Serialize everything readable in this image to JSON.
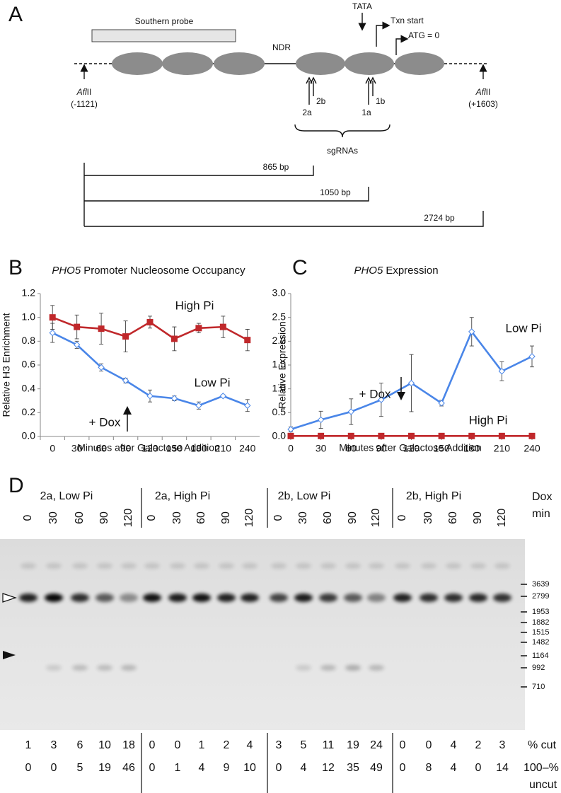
{
  "panel_labels": [
    "A",
    "B",
    "C",
    "D"
  ],
  "panel_a": {
    "probe": "Southern probe",
    "ndr": "NDR",
    "tata": "TATA",
    "txn_start": "Txn start",
    "atg": "ATG = 0",
    "sites": [
      {
        "name_italic": "Afl",
        "name_rest": "II",
        "position": "(-1121)"
      },
      {
        "name_italic": "Afl",
        "name_rest": "II",
        "position": "(+1603)"
      }
    ],
    "sgrna_labels": [
      "2b",
      "2a",
      "1b",
      "1a"
    ],
    "sgrnas": "sgRNAs",
    "fragments": [
      "865 bp",
      "1050 bp",
      "2724 bp"
    ]
  },
  "chart_data": [
    {
      "type": "line",
      "title_gene": "PHO5",
      "title": "Promoter Nucleosome Occupancy",
      "x_label": "Minutes after Galactose Addition",
      "y_label": "Relative H3 Enrichment",
      "categories": [
        "0",
        "30",
        "60",
        "90",
        "120",
        "150",
        "180",
        "210",
        "240"
      ],
      "series": [
        {
          "name": "High Pi",
          "color": "#c0282b",
          "marker": "square",
          "values": [
            1.0,
            0.92,
            0.905,
            0.84,
            0.96,
            0.82,
            0.91,
            0.92,
            0.81
          ],
          "errors": [
            0.1,
            0.1,
            0.13,
            0.13,
            0.05,
            0.1,
            0.04,
            0.09,
            0.09
          ]
        },
        {
          "name": "Low Pi",
          "color": "#4a86e8",
          "marker": "diamond",
          "values": [
            0.87,
            0.77,
            0.58,
            0.47,
            0.34,
            0.32,
            0.26,
            0.34,
            0.26
          ],
          "errors": [
            0.08,
            0.03,
            0.03,
            0.02,
            0.05,
            0.02,
            0.03,
            0.01,
            0.05
          ]
        }
      ],
      "ylim": [
        0,
        1.2
      ],
      "yticks": [
        {
          "value": 0,
          "label": "0.0"
        },
        0.2,
        0.4,
        0.6,
        0.8,
        {
          "value": 1,
          "label": "1.0"
        },
        1.2
      ],
      "grid": false,
      "annotation": "+ Dox"
    },
    {
      "type": "line",
      "title_gene": "PHO5",
      "title": "Expression",
      "x_label": "Minutes after Galactose Addition",
      "y_label": "Relative Expression",
      "categories": [
        "0",
        "30",
        "60",
        "90",
        "120",
        "150",
        "180",
        "210",
        "240"
      ],
      "series": [
        {
          "name": "Low Pi",
          "color": "#4a86e8",
          "marker": "diamond",
          "values": [
            0.15,
            0.35,
            0.52,
            0.77,
            1.12,
            0.7,
            2.2,
            1.37,
            1.68
          ],
          "errors": [
            0.05,
            0.18,
            0.27,
            0.35,
            0.6,
            0.06,
            0.3,
            0.2,
            0.22
          ]
        },
        {
          "name": "High Pi",
          "color": "#c0282b",
          "marker": "square",
          "values": [
            0.01,
            0.01,
            0.01,
            0.01,
            0.01,
            0.01,
            0.01,
            0.01,
            0.01
          ],
          "errors": [
            0.01,
            0.01,
            0.01,
            0.01,
            0.01,
            0.01,
            0.01,
            0.01,
            0.01
          ]
        }
      ],
      "ylim": [
        0,
        3
      ],
      "yticks": [
        {
          "value": 0,
          "label": "0.0"
        },
        0.5,
        {
          "value": 1,
          "label": "1.0"
        },
        1.5,
        {
          "value": 2,
          "label": "2.0"
        },
        2.5,
        {
          "value": 3,
          "label": "3.0"
        }
      ],
      "grid": false,
      "annotation": "+ Dox"
    }
  ],
  "panel_d": {
    "dox_label": [
      "Dox",
      "min"
    ],
    "groups": [
      {
        "label": "2a, Low Pi",
        "color": "#3d85c6",
        "lanes": [
          "0",
          "30",
          "60",
          "90",
          "120"
        ],
        "pct_cut": [
          1,
          3,
          6,
          10,
          18
        ],
        "pct_uncut": [
          0,
          0,
          5,
          19,
          46
        ]
      },
      {
        "label": "2a, High Pi",
        "color": "#c0282b",
        "lanes": [
          "0",
          "30",
          "60",
          "90",
          "120"
        ],
        "pct_cut": [
          0,
          0,
          1,
          2,
          4
        ],
        "pct_uncut": [
          0,
          1,
          4,
          9,
          10
        ]
      },
      {
        "label": "2b, Low Pi",
        "color": "#3d85c6",
        "lanes": [
          "0",
          "30",
          "60",
          "90",
          "120"
        ],
        "pct_cut": [
          3,
          5,
          11,
          19,
          24
        ],
        "pct_uncut": [
          0,
          4,
          12,
          35,
          49
        ]
      },
      {
        "label": "2b, High Pi",
        "color": "#c0282b",
        "lanes": [
          "0",
          "30",
          "60",
          "90",
          "120"
        ],
        "pct_cut": [
          0,
          0,
          4,
          2,
          3
        ],
        "pct_uncut": [
          0,
          8,
          4,
          0,
          14
        ]
      }
    ],
    "size_markers": [
      3639,
      2799,
      1953,
      1882,
      1515,
      1482,
      1164,
      992,
      710
    ],
    "row_labels": {
      "cut": "% cut",
      "uncut_top": "100–%",
      "uncut_bottom": "uncut"
    }
  }
}
